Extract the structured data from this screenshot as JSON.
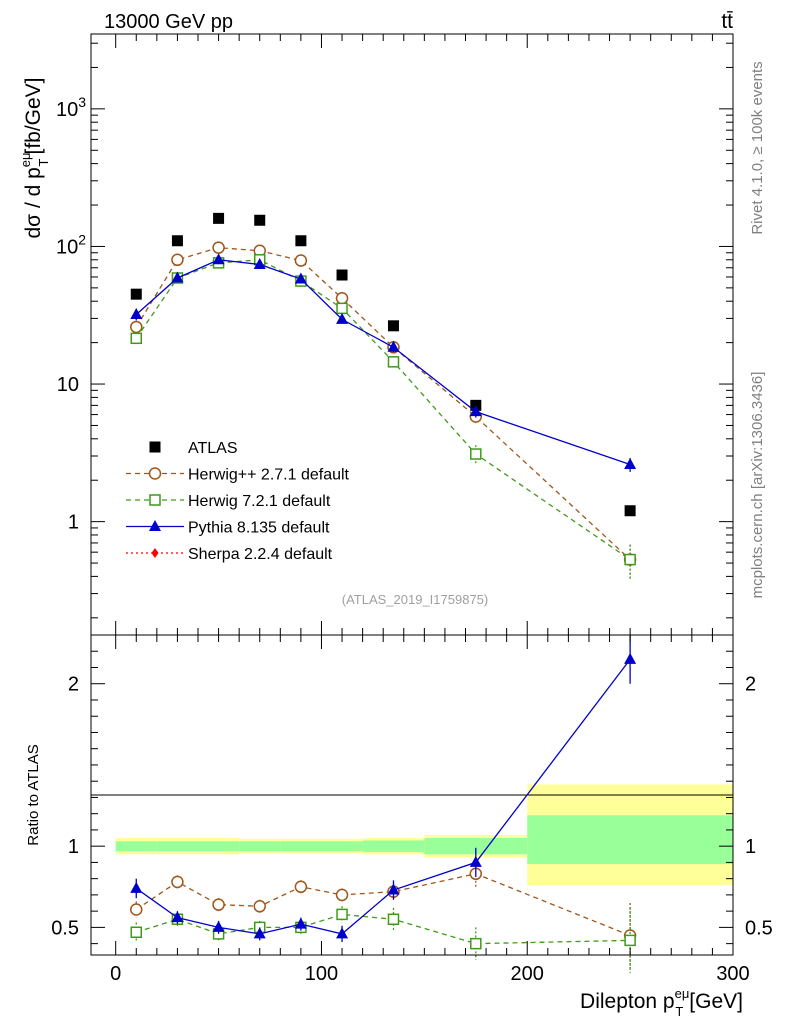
{
  "header": {
    "energy_label": "13000 GeV pp",
    "process_label": "tt̄",
    "rivet_label": "Rivet 4.1.0, ≥ 100k events",
    "site_label": "mcplots.cern.ch [arXiv:1306.3436]",
    "analysis_label": "(ATLAS_2019_I1759875)"
  },
  "chart_data": [
    {
      "type": "scatter",
      "panel": "main",
      "yscale": "log",
      "ylabel": "dσ / d p_T^eμ [fb/GeV]",
      "ylabel_parts": {
        "main": "dσ / d p",
        "sup": "eμ",
        "sub": "T",
        "unit": "[fb/GeV]"
      },
      "ylim": [
        0.15,
        3500
      ],
      "yticks": [
        {
          "value": 1,
          "label": "1"
        },
        {
          "value": 10,
          "label": "10"
        },
        {
          "value": 100,
          "label": "10",
          "exp": "2"
        },
        {
          "value": 1000,
          "label": "10",
          "exp": "3"
        }
      ],
      "legend": [
        "ATLAS",
        "Herwig++ 2.7.1 default",
        "Herwig 7.2.1 default",
        "Pythia 8.135 default",
        "Sherpa 2.2.4 default"
      ],
      "legend_position": "middle-left",
      "x": [
        10,
        30,
        50,
        70,
        90,
        110,
        135,
        175,
        250
      ],
      "series": [
        {
          "name": "ATLAS",
          "color": "#000000",
          "marker": "square-filled",
          "line": "none",
          "values": [
            45,
            110,
            160,
            155,
            110,
            62,
            26.5,
            7.0,
            1.2
          ]
        },
        {
          "name": "Herwig++ 2.7.1 default",
          "color": "#a0561a",
          "marker": "circle-open",
          "line": "dashed",
          "values": [
            26,
            80,
            98,
            93,
            79,
            42,
            18.5,
            5.8,
            0.53
          ],
          "errors": [
            2,
            3,
            3,
            3,
            3,
            2,
            1.2,
            0.6,
            0.15
          ]
        },
        {
          "name": "Herwig 7.2.1 default",
          "color": "#3f9a1a",
          "marker": "square-open",
          "line": "dashed",
          "values": [
            21.5,
            59,
            76,
            80,
            56,
            35.5,
            14.5,
            3.1,
            0.53
          ],
          "errors": [
            1.5,
            3,
            3,
            3,
            3,
            2,
            1.2,
            0.5,
            0.15
          ]
        },
        {
          "name": "Pythia 8.135 default",
          "color": "#0000cc",
          "marker": "triangle-filled",
          "line": "solid",
          "values": [
            32,
            59,
            80,
            74,
            58,
            29.5,
            18.5,
            6.3,
            2.6
          ],
          "errors": [
            3,
            3,
            3,
            3,
            3,
            2,
            1.5,
            0.6,
            0.3
          ]
        },
        {
          "name": "Sherpa 2.2.4 default",
          "color": "#ff0000",
          "marker": "diamond-filled",
          "line": "dotted",
          "values": []
        }
      ]
    },
    {
      "type": "scatter",
      "panel": "ratio",
      "ylabel": "Ratio to ATLAS",
      "xlabel": "Dilepton p_T^eμ [GeV]",
      "xlabel_parts": {
        "main": "Dilepton p",
        "sup": "eμ",
        "sub": "T",
        "unit": "[GeV]"
      },
      "xlim": [
        -12,
        300
      ],
      "ylim": [
        0.33,
        2.3
      ],
      "xticks": [
        0,
        100,
        200,
        300
      ],
      "yticks": [
        0.5,
        1,
        2
      ],
      "bands": [
        {
          "x0": 0,
          "x1": 20,
          "green": [
            0.97,
            1.03
          ],
          "yellow": [
            0.95,
            1.05
          ]
        },
        {
          "x0": 20,
          "x1": 40,
          "green": [
            0.97,
            1.03
          ],
          "yellow": [
            0.95,
            1.05
          ]
        },
        {
          "x0": 40,
          "x1": 60,
          "green": [
            0.97,
            1.03
          ],
          "yellow": [
            0.95,
            1.05
          ]
        },
        {
          "x0": 60,
          "x1": 80,
          "green": [
            0.97,
            1.03
          ],
          "yellow": [
            0.955,
            1.045
          ]
        },
        {
          "x0": 80,
          "x1": 100,
          "green": [
            0.97,
            1.03
          ],
          "yellow": [
            0.955,
            1.045
          ]
        },
        {
          "x0": 100,
          "x1": 120,
          "green": [
            0.97,
            1.03
          ],
          "yellow": [
            0.955,
            1.045
          ]
        },
        {
          "x0": 120,
          "x1": 150,
          "green": [
            0.965,
            1.035
          ],
          "yellow": [
            0.95,
            1.05
          ]
        },
        {
          "x0": 150,
          "x1": 200,
          "green": [
            0.95,
            1.05
          ],
          "yellow": [
            0.93,
            1.07
          ]
        },
        {
          "x0": 200,
          "x1": 300,
          "green": [
            0.89,
            1.19
          ],
          "yellow": [
            0.76,
            1.38
          ]
        }
      ],
      "x": [
        10,
        30,
        50,
        70,
        90,
        110,
        135,
        175,
        250
      ],
      "series": [
        {
          "name": "Herwig++ 2.7.1 default",
          "color": "#a0561a",
          "marker": "circle-open",
          "line": "dashed",
          "values": [
            0.61,
            0.78,
            0.64,
            0.63,
            0.75,
            0.7,
            0.72,
            0.83,
            0.45
          ],
          "errors": [
            0.05,
            0.04,
            0.04,
            0.04,
            0.04,
            0.04,
            0.05,
            0.08,
            0.2
          ]
        },
        {
          "name": "Herwig 7.2.1 default",
          "color": "#3f9a1a",
          "marker": "square-open",
          "line": "dashed",
          "values": [
            0.47,
            0.55,
            0.46,
            0.5,
            0.5,
            0.58,
            0.55,
            0.4,
            0.42
          ],
          "errors": [
            0.06,
            0.04,
            0.04,
            0.04,
            0.04,
            0.05,
            0.07,
            0.1,
            0.2
          ]
        },
        {
          "name": "Pythia 8.135 default",
          "color": "#0000cc",
          "marker": "triangle-filled",
          "line": "solid",
          "values": [
            0.74,
            0.56,
            0.5,
            0.46,
            0.52,
            0.46,
            0.73,
            0.9,
            2.15
          ],
          "errors": [
            0.06,
            0.04,
            0.04,
            0.04,
            0.04,
            0.05,
            0.06,
            0.09,
            0.15
          ]
        }
      ]
    }
  ]
}
